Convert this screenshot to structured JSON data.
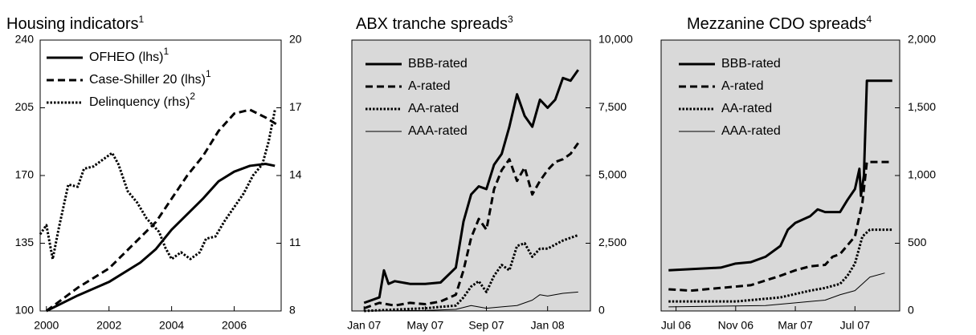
{
  "chart_data": [
    {
      "type": "line",
      "title": "Housing indicators",
      "title_sup": "1",
      "background": "#ffffff",
      "xlim": [
        1999.8,
        2007.5
      ],
      "xticks": [
        2000,
        2002,
        2004,
        2006
      ],
      "ylim": [
        100,
        240
      ],
      "yticks": [
        100,
        135,
        170,
        205,
        240
      ],
      "y2lim": [
        8,
        20
      ],
      "y2ticks": [
        8,
        11,
        14,
        17,
        20
      ],
      "series": [
        {
          "name": "OFHEO (lhs)",
          "sup": "1",
          "dash": "solid",
          "width": 3,
          "color": "#000000",
          "x": [
            2000,
            2001,
            2002,
            2003,
            2003.5,
            2004,
            2005,
            2005.5,
            2006,
            2006.5,
            2007,
            2007.3
          ],
          "values": [
            100,
            108,
            115,
            125,
            132,
            142,
            158,
            167,
            172,
            175,
            176,
            175
          ]
        },
        {
          "name": "Case-Shiller 20 (lhs)",
          "sup": "1",
          "dash": "dashed",
          "width": 3,
          "color": "#000000",
          "x": [
            2000,
            2001,
            2002,
            2002.5,
            2003,
            2003.5,
            2004,
            2004.5,
            2005,
            2005.5,
            2006,
            2006.5,
            2007,
            2007.4
          ],
          "values": [
            100,
            112,
            122,
            130,
            138,
            146,
            158,
            170,
            180,
            193,
            202,
            204,
            200,
            196
          ]
        },
        {
          "name": "Delinquency (rhs)",
          "sup": "2",
          "dash": "dotted",
          "width": 3,
          "color": "#000000",
          "axis": "y2",
          "x": [
            1999.8,
            2000,
            2000.2,
            2000.4,
            2000.7,
            2001,
            2001.2,
            2001.5,
            2001.9,
            2002.1,
            2002.3,
            2002.6,
            2002.9,
            2003.2,
            2003.4,
            2003.6,
            2003.8,
            2004,
            2004.3,
            2004.6,
            2004.9,
            2005.1,
            2005.4,
            2005.7,
            2006,
            2006.3,
            2006.6,
            2006.9,
            2007.1,
            2007.3
          ],
          "values": [
            11.4,
            11.8,
            10.3,
            11.7,
            13.6,
            13.5,
            14.3,
            14.4,
            14.8,
            15.0,
            14.5,
            13.3,
            12.8,
            12.1,
            11.8,
            11.5,
            10.8,
            10.3,
            10.6,
            10.3,
            10.6,
            11.2,
            11.3,
            12.0,
            12.6,
            13.2,
            14.0,
            14.5,
            15.5,
            16.9
          ]
        }
      ]
    },
    {
      "type": "line",
      "title": "ABX tranche spreads",
      "title_sup": "3",
      "background": "#d9d9d9",
      "yaxis_side": "right",
      "xlim": [
        -0.8,
        14.8
      ],
      "xticks": [
        {
          "value": 0,
          "label": "Jan 07"
        },
        {
          "value": 4,
          "label": "May 07"
        },
        {
          "value": 8,
          "label": "Sep 07"
        },
        {
          "value": 12,
          "label": "Jan 08"
        }
      ],
      "ylim": [
        0,
        10000
      ],
      "yticks": [
        0,
        {
          "value": 2500,
          "label": "2,500"
        },
        {
          "value": 5000,
          "label": "5,000"
        },
        {
          "value": 7500,
          "label": "7,500"
        },
        {
          "value": 10000,
          "label": "10,000"
        }
      ],
      "series": [
        {
          "name": "BBB-rated",
          "dash": "solid",
          "width": 3,
          "color": "#000000",
          "x": [
            0,
            0.5,
            1,
            1.3,
            1.6,
            2,
            3,
            4,
            5,
            6,
            6.5,
            7,
            7.5,
            8,
            8.5,
            9,
            9.5,
            10,
            10.5,
            11,
            11.5,
            12,
            12.5,
            13,
            13.5,
            14
          ],
          "values": [
            300,
            400,
            500,
            1500,
            1000,
            1100,
            1000,
            1000,
            1050,
            1600,
            3300,
            4300,
            4600,
            4500,
            5400,
            5800,
            6800,
            8000,
            7200,
            6800,
            7800,
            7500,
            7800,
            8600,
            8500,
            8900
          ]
        },
        {
          "name": "A-rated",
          "dash": "dashed",
          "width": 3,
          "color": "#000000",
          "x": [
            0,
            1,
            2,
            3,
            4,
            5,
            6,
            6.5,
            7,
            7.5,
            8,
            8.5,
            9,
            9.5,
            10,
            10.5,
            11,
            11.5,
            12,
            12.5,
            13,
            13.5,
            14
          ],
          "values": [
            100,
            300,
            200,
            300,
            250,
            350,
            600,
            1500,
            2700,
            3400,
            3000,
            4500,
            5200,
            5600,
            4800,
            5300,
            4300,
            4800,
            5200,
            5500,
            5600,
            5800,
            6200
          ]
        },
        {
          "name": "AA-rated",
          "dash": "dotted",
          "width": 3,
          "color": "#000000",
          "x": [
            0,
            2,
            4,
            6,
            6.5,
            7,
            7.5,
            8,
            8.5,
            9,
            9.5,
            10,
            10.5,
            11,
            11.5,
            12,
            13,
            14
          ],
          "values": [
            0,
            50,
            100,
            200,
            500,
            900,
            1100,
            700,
            1300,
            1700,
            1500,
            2400,
            2500,
            2000,
            2300,
            2300,
            2600,
            2800
          ]
        },
        {
          "name": "AAA-rated",
          "dash": "solid",
          "width": 1,
          "color": "#000000",
          "x": [
            0,
            4,
            6,
            7,
            8,
            9,
            10,
            11,
            11.5,
            12,
            13,
            14
          ],
          "values": [
            0,
            20,
            60,
            200,
            100,
            150,
            200,
            400,
            600,
            550,
            650,
            700
          ]
        }
      ]
    },
    {
      "type": "line",
      "title": "Mezzanine CDO spreads",
      "title_sup": "4",
      "background": "#d9d9d9",
      "yaxis_side": "right",
      "xlim": [
        -1,
        15
      ],
      "xticks": [
        {
          "value": 0,
          "label": "Jul 06"
        },
        {
          "value": 4,
          "label": "Nov 06"
        },
        {
          "value": 8,
          "label": "Mar 07"
        },
        {
          "value": 12,
          "label": "Jul 07"
        }
      ],
      "ylim": [
        0,
        2000
      ],
      "yticks": [
        0,
        500,
        {
          "value": 1000,
          "label": "1,000"
        },
        {
          "value": 1500,
          "label": "1,500"
        },
        {
          "value": 2000,
          "label": "2,000"
        }
      ],
      "series": [
        {
          "name": "BBB-rated",
          "dash": "solid",
          "width": 3,
          "color": "#000000",
          "x": [
            -0.5,
            3,
            4,
            5,
            6,
            7,
            7.5,
            8,
            9,
            9.5,
            10,
            11,
            11.5,
            12,
            12.3,
            12.4,
            12.6,
            12.8,
            14.5
          ],
          "values": [
            300,
            320,
            350,
            360,
            400,
            480,
            600,
            650,
            700,
            750,
            730,
            730,
            820,
            900,
            1050,
            850,
            1000,
            1700,
            1700
          ]
        },
        {
          "name": "A-rated",
          "dash": "dashed",
          "width": 3,
          "color": "#000000",
          "x": [
            -0.5,
            1,
            3,
            5,
            7,
            8,
            9,
            10,
            10.5,
            11,
            12,
            12.5,
            12.8,
            14.5
          ],
          "values": [
            160,
            150,
            170,
            190,
            260,
            300,
            330,
            340,
            400,
            420,
            550,
            800,
            1100,
            1100
          ]
        },
        {
          "name": "AA-rated",
          "dash": "dotted",
          "width": 3,
          "color": "#000000",
          "x": [
            -0.5,
            4,
            7,
            9,
            10,
            11,
            11.5,
            12,
            12.5,
            13,
            14.5
          ],
          "values": [
            70,
            70,
            100,
            150,
            170,
            200,
            260,
            350,
            550,
            600,
            600
          ]
        },
        {
          "name": "AAA-rated",
          "dash": "solid",
          "width": 1,
          "color": "#000000",
          "x": [
            -0.5,
            6,
            8,
            10,
            11,
            12,
            12.5,
            13,
            14
          ],
          "values": [
            30,
            40,
            60,
            80,
            120,
            150,
            200,
            250,
            280
          ]
        }
      ]
    }
  ]
}
